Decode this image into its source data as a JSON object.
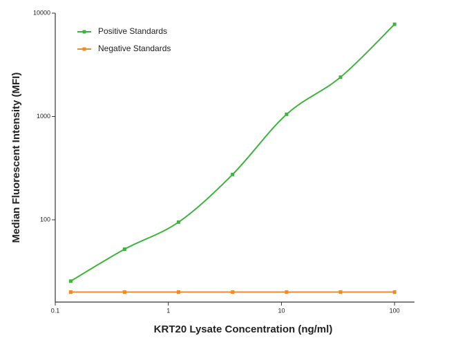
{
  "chart_data": {
    "type": "line",
    "x_label": "KRT20 Lysate Concentration (ng/ml)",
    "y_label": "Median  Fluorescent Intensity  (MFI)",
    "x": [
      0.137,
      0.41,
      1.23,
      3.7,
      11.1,
      33.3,
      100
    ],
    "series": [
      {
        "name": "Positive Standards",
        "color": "#3cb53c",
        "values": [
          25.5,
          52,
          95,
          275,
          1050,
          2400,
          7800
        ]
      },
      {
        "name": "Negative Standards",
        "color": "#f08a24",
        "values": [
          20,
          20,
          20,
          20,
          20,
          20,
          20
        ]
      }
    ],
    "xlim": [
      0.1,
      150
    ],
    "ylim": [
      16,
      10000
    ],
    "xticks": [
      0.1,
      1,
      10,
      100
    ],
    "yticks": [
      100,
      1000,
      10000
    ],
    "log_x": true,
    "log_y": true,
    "legend": "top-left"
  }
}
